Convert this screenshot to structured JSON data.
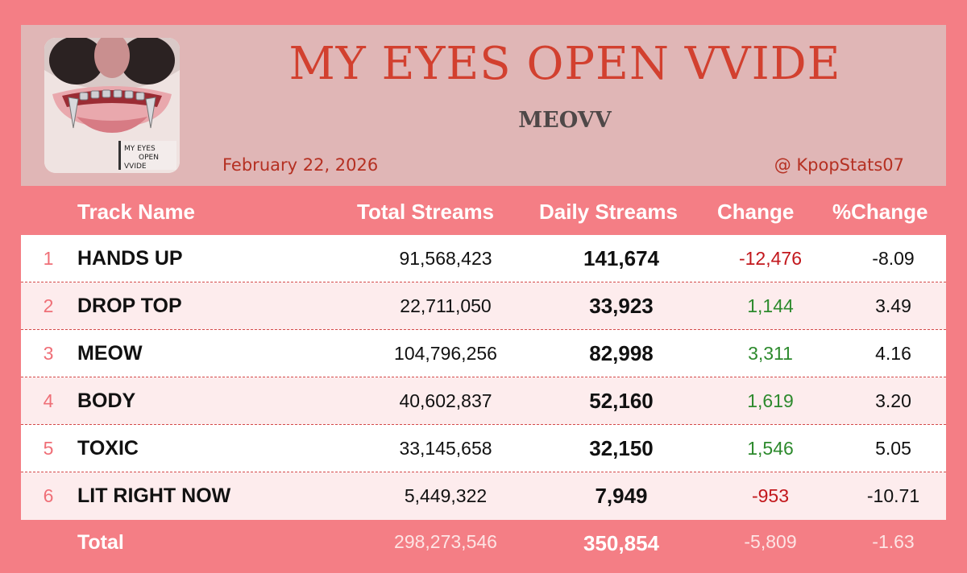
{
  "header": {
    "title": "MY EYES OPEN VVIDE",
    "artist": "MEOVV",
    "date": "February 22, 2026",
    "handle": "@ KpopStats07",
    "cover_text": [
      "MY EYES",
      "OPEN",
      "VVIDE"
    ]
  },
  "colors": {
    "background": "#f47e85",
    "header_panel": "#e0b6b6",
    "title": "#d2402f",
    "negative": "#c2171c",
    "positive": "#2d8a2d",
    "rank": "#ef6f77"
  },
  "columns": [
    "Track Name",
    "Total Streams",
    "Daily Streams",
    "Change",
    "%Change"
  ],
  "chart_data": {
    "type": "table",
    "columns": [
      "Track Name",
      "Total Streams",
      "Daily Streams",
      "Change",
      "%Change"
    ],
    "rows": [
      {
        "rank": "1",
        "track": "HANDS UP",
        "total": "91,568,423",
        "daily": "141,674",
        "change": "-12,476",
        "pct": "-8.09"
      },
      {
        "rank": "2",
        "track": "DROP TOP",
        "total": "22,711,050",
        "daily": "33,923",
        "change": "1,144",
        "pct": "3.49"
      },
      {
        "rank": "3",
        "track": "MEOW",
        "total": "104,796,256",
        "daily": "82,998",
        "change": "3,311",
        "pct": "4.16"
      },
      {
        "rank": "4",
        "track": "BODY",
        "total": "40,602,837",
        "daily": "52,160",
        "change": "1,619",
        "pct": "3.20"
      },
      {
        "rank": "5",
        "track": "TOXIC",
        "total": "33,145,658",
        "daily": "32,150",
        "change": "1,546",
        "pct": "5.05"
      },
      {
        "rank": "6",
        "track": "LIT RIGHT NOW",
        "total": "5,449,322",
        "daily": "7,949",
        "change": "-953",
        "pct": "-10.71"
      }
    ],
    "totals": {
      "label": "Total",
      "total": "298,273,546",
      "daily": "350,854",
      "change": "-5,809",
      "pct": "-1.63"
    }
  }
}
